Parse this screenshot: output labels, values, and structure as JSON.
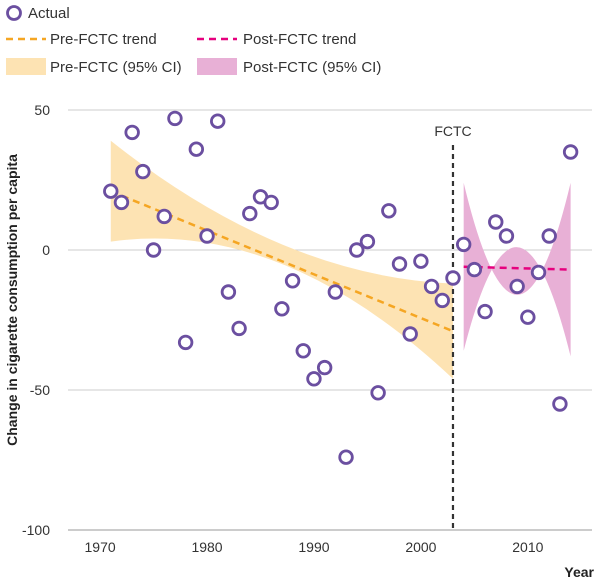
{
  "chart_data": {
    "type": "scatter",
    "title": "",
    "xlabel": "Year",
    "ylabel": "Change in cigarette consumption per capita",
    "xlim": [
      1967,
      2016
    ],
    "ylim": [
      -100,
      50
    ],
    "x_ticks": [
      1970,
      1980,
      1990,
      2000,
      2010
    ],
    "y_ticks": [
      50,
      0,
      -50,
      -100
    ],
    "grid": "horizontal",
    "legend_position": "top",
    "legend": {
      "actual": "Actual",
      "pre_trend": "Pre-FCTC trend",
      "post_trend": "Post-FCTC trend",
      "pre_ci": "Pre-FCTC (95% CI)",
      "post_ci": "Post-FCTC (95% CI)"
    },
    "annotation": {
      "label": "FCTC",
      "x": 2003
    },
    "colors": {
      "points": "#6b4fa0",
      "pre_trend": "#f5a623",
      "pre_ci": "#fde3b3",
      "post_trend": "#e6007e",
      "post_ci": "#e8b0d6",
      "grid": "#cccccc",
      "fctc_line": "#333333"
    },
    "series": [
      {
        "name": "Actual",
        "points": [
          {
            "x": 1971,
            "y": 21
          },
          {
            "x": 1972,
            "y": 17
          },
          {
            "x": 1973,
            "y": 42
          },
          {
            "x": 1974,
            "y": 28
          },
          {
            "x": 1975,
            "y": 0
          },
          {
            "x": 1976,
            "y": 12
          },
          {
            "x": 1977,
            "y": 47
          },
          {
            "x": 1978,
            "y": -33
          },
          {
            "x": 1979,
            "y": 36
          },
          {
            "x": 1980,
            "y": 5
          },
          {
            "x": 1981,
            "y": 46
          },
          {
            "x": 1982,
            "y": -15
          },
          {
            "x": 1983,
            "y": -28
          },
          {
            "x": 1984,
            "y": 13
          },
          {
            "x": 1985,
            "y": 19
          },
          {
            "x": 1986,
            "y": 17
          },
          {
            "x": 1987,
            "y": -21
          },
          {
            "x": 1988,
            "y": -11
          },
          {
            "x": 1989,
            "y": -36
          },
          {
            "x": 1990,
            "y": -46
          },
          {
            "x": 1991,
            "y": -42
          },
          {
            "x": 1992,
            "y": -15
          },
          {
            "x": 1993,
            "y": -74
          },
          {
            "x": 1994,
            "y": 0
          },
          {
            "x": 1995,
            "y": 3
          },
          {
            "x": 1996,
            "y": -51
          },
          {
            "x": 1997,
            "y": 14
          },
          {
            "x": 1998,
            "y": -5
          },
          {
            "x": 1999,
            "y": -30
          },
          {
            "x": 2000,
            "y": -4
          },
          {
            "x": 2001,
            "y": -13
          },
          {
            "x": 2002,
            "y": -18
          },
          {
            "x": 2003,
            "y": -10
          },
          {
            "x": 2004,
            "y": 2
          },
          {
            "x": 2005,
            "y": -7
          },
          {
            "x": 2006,
            "y": -22
          },
          {
            "x": 2007,
            "y": 10
          },
          {
            "x": 2008,
            "y": 5
          },
          {
            "x": 2009,
            "y": -13
          },
          {
            "x": 2010,
            "y": -24
          },
          {
            "x": 2011,
            "y": -8
          },
          {
            "x": 2012,
            "y": 5
          },
          {
            "x": 2013,
            "y": -55
          },
          {
            "x": 2014,
            "y": 35
          }
        ]
      },
      {
        "name": "Pre-FCTC trend",
        "points": [
          {
            "x": 1971,
            "y": 21
          },
          {
            "x": 2003,
            "y": -29
          }
        ]
      },
      {
        "name": "Post-FCTC trend",
        "points": [
          {
            "x": 2004,
            "y": -6
          },
          {
            "x": 2014,
            "y": -7
          }
        ]
      },
      {
        "name": "Pre-FCTC (95% CI)",
        "upper": [
          {
            "x": 1971,
            "y": 39
          },
          {
            "x": 1987,
            "y": 2
          },
          {
            "x": 2003,
            "y": -12
          }
        ],
        "lower": [
          {
            "x": 1971,
            "y": 3
          },
          {
            "x": 1987,
            "y": -5
          },
          {
            "x": 2003,
            "y": -46
          }
        ]
      },
      {
        "name": "Post-FCTC (95% CI)",
        "upper": [
          {
            "x": 2004,
            "y": 24
          },
          {
            "x": 2009,
            "y": -16
          },
          {
            "x": 2014,
            "y": 24
          }
        ],
        "lower": [
          {
            "x": 2004,
            "y": -36
          },
          {
            "x": 2009,
            "y": 1
          },
          {
            "x": 2014,
            "y": -38
          }
        ]
      }
    ]
  }
}
